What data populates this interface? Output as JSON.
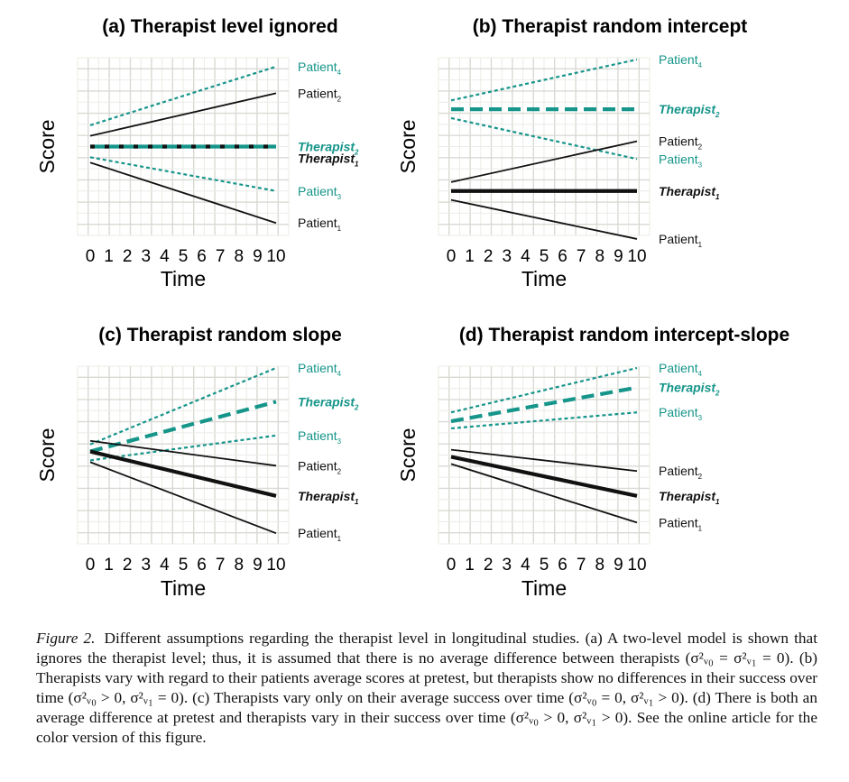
{
  "colors": {
    "teal": "#16958a",
    "black": "#111111",
    "grid_major": "#d9d9d4",
    "grid_minor": "#ebebe6"
  },
  "axes": {
    "xlabel": "Time",
    "ylabel": "Score",
    "xticks": [
      "0",
      "1",
      "2",
      "3",
      "4",
      "5",
      "6",
      "7",
      "8",
      "9",
      "10"
    ]
  },
  "chart_data": [
    {
      "type": "line",
      "title": "(a) Therapist level ignored",
      "xlabel": "Time",
      "ylabel": "Score",
      "xlim": [
        0,
        10
      ],
      "ylim": [
        0,
        10
      ],
      "grid": true,
      "series": [
        {
          "name": "Patient4",
          "base": "Patient",
          "index": "4",
          "color": "teal",
          "style": "dotted",
          "x": [
            0,
            10
          ],
          "y": [
            6.2,
            9.5
          ]
        },
        {
          "name": "Patient2",
          "base": "Patient",
          "index": "2",
          "color": "black",
          "style": "solid",
          "x": [
            0,
            10
          ],
          "y": [
            5.6,
            8.0
          ]
        },
        {
          "name": "Therapist2",
          "base": "Therapist",
          "index": "2",
          "color": "teal",
          "style": "thick-solid",
          "x": [
            0,
            10
          ],
          "y": [
            5.0,
            5.0
          ]
        },
        {
          "name": "Therapist1",
          "base": "Therapist",
          "index": "1",
          "color": "black",
          "style": "thick-dashed",
          "x": [
            0,
            10
          ],
          "y": [
            5.0,
            5.0
          ]
        },
        {
          "name": "Patient3",
          "base": "Patient",
          "index": "3",
          "color": "teal",
          "style": "dotted",
          "x": [
            0,
            10
          ],
          "y": [
            4.4,
            2.5
          ]
        },
        {
          "name": "Patient1",
          "base": "Patient",
          "index": "1",
          "color": "black",
          "style": "solid",
          "x": [
            0,
            10
          ],
          "y": [
            4.1,
            0.7
          ]
        }
      ]
    },
    {
      "type": "line",
      "title": "(b) Therapist random intercept",
      "xlabel": "Time",
      "ylabel": "Score",
      "xlim": [
        0,
        10
      ],
      "ylim": [
        0,
        10
      ],
      "grid": true,
      "series": [
        {
          "name": "Patient4",
          "base": "Patient",
          "index": "4",
          "color": "teal",
          "style": "dotted",
          "x": [
            0,
            10
          ],
          "y": [
            7.6,
            9.9
          ]
        },
        {
          "name": "Therapist2",
          "base": "Therapist",
          "index": "2",
          "color": "teal",
          "style": "thick-dashed",
          "x": [
            0,
            10
          ],
          "y": [
            7.1,
            7.1
          ]
        },
        {
          "name": "Patient3",
          "base": "Patient",
          "index": "3",
          "color": "teal",
          "style": "dotted",
          "x": [
            0,
            10
          ],
          "y": [
            6.6,
            4.3
          ]
        },
        {
          "name": "Patient2",
          "base": "Patient",
          "index": "2",
          "color": "black",
          "style": "solid",
          "x": [
            0,
            10
          ],
          "y": [
            3.0,
            5.3
          ]
        },
        {
          "name": "Therapist1",
          "base": "Therapist",
          "index": "1",
          "color": "black",
          "style": "thick-solid",
          "x": [
            0,
            10
          ],
          "y": [
            2.5,
            2.5
          ]
        },
        {
          "name": "Patient1",
          "base": "Patient",
          "index": "1",
          "color": "black",
          "style": "solid",
          "x": [
            0,
            10
          ],
          "y": [
            2.0,
            -0.2
          ]
        }
      ]
    },
    {
      "type": "line",
      "title": "(c) Therapist random slope",
      "xlabel": "Time",
      "ylabel": "Score",
      "xlim": [
        0,
        10
      ],
      "ylim": [
        0,
        10
      ],
      "grid": true,
      "series": [
        {
          "name": "Patient4",
          "base": "Patient",
          "index": "4",
          "color": "teal",
          "style": "dotted",
          "x": [
            0,
            10
          ],
          "y": [
            5.6,
            9.9
          ]
        },
        {
          "name": "Therapist2",
          "base": "Therapist",
          "index": "2",
          "color": "teal",
          "style": "thick-dashed",
          "x": [
            0,
            10
          ],
          "y": [
            5.2,
            8.0
          ]
        },
        {
          "name": "Patient3",
          "base": "Patient",
          "index": "3",
          "color": "teal",
          "style": "dotted",
          "x": [
            0,
            10
          ],
          "y": [
            4.7,
            6.1
          ]
        },
        {
          "name": "Patient2",
          "base": "Patient",
          "index": "2",
          "color": "black",
          "style": "solid",
          "x": [
            0,
            10
          ],
          "y": [
            5.8,
            4.4
          ]
        },
        {
          "name": "Therapist1",
          "base": "Therapist",
          "index": "1",
          "color": "black",
          "style": "thick-solid",
          "x": [
            0,
            10
          ],
          "y": [
            5.2,
            2.7
          ]
        },
        {
          "name": "Patient1",
          "base": "Patient",
          "index": "1",
          "color": "black",
          "style": "solid",
          "x": [
            0,
            10
          ],
          "y": [
            4.6,
            0.6
          ]
        }
      ]
    },
    {
      "type": "line",
      "title": "(d) Therapist random intercept-slope",
      "xlabel": "Time",
      "ylabel": "Score",
      "xlim": [
        0,
        10
      ],
      "ylim": [
        0,
        10
      ],
      "grid": true,
      "series": [
        {
          "name": "Patient4",
          "base": "Patient",
          "index": "4",
          "color": "teal",
          "style": "dotted",
          "x": [
            0,
            10
          ],
          "y": [
            7.4,
            9.9
          ]
        },
        {
          "name": "Therapist2",
          "base": "Therapist",
          "index": "2",
          "color": "teal",
          "style": "thick-dashed",
          "x": [
            0,
            10
          ],
          "y": [
            6.9,
            8.8
          ]
        },
        {
          "name": "Patient3",
          "base": "Patient",
          "index": "3",
          "color": "teal",
          "style": "dotted",
          "x": [
            0,
            10
          ],
          "y": [
            6.5,
            7.4
          ]
        },
        {
          "name": "Patient2",
          "base": "Patient",
          "index": "2",
          "color": "black",
          "style": "solid",
          "x": [
            0,
            10
          ],
          "y": [
            5.3,
            4.1
          ]
        },
        {
          "name": "Therapist1",
          "base": "Therapist",
          "index": "1",
          "color": "black",
          "style": "thick-solid",
          "x": [
            0,
            10
          ],
          "y": [
            4.9,
            2.7
          ]
        },
        {
          "name": "Patient1",
          "base": "Patient",
          "index": "1",
          "color": "black",
          "style": "solid",
          "x": [
            0,
            10
          ],
          "y": [
            4.5,
            1.2
          ]
        }
      ]
    }
  ],
  "caption": {
    "label": "Figure 2.",
    "parts": [
      "Different assumptions regarding the therapist level in longitudinal studies. (a) A two-level model is shown that ignores the therapist level; thus, it is assumed that there is no average difference between therapists (",
      "σ²ᵥ₀ = σ²ᵥ₁ = 0",
      "). (b) Therapists vary with regard to their patients average scores at pretest, but therapists show no differences in their success over time (",
      "σ²ᵥ₀ > 0, σ²ᵥ₁ = 0",
      "). (c) Therapists vary only on their average success over time (",
      "σ²ᵥ₀ = 0, σ²ᵥ₁ > 0",
      "). (d) There is both an average difference at pretest and therapists vary in their success over time (",
      "σ²ᵥ₀ > 0, σ²ᵥ₁ > 0",
      "). See the online article for the color version of this figure."
    ]
  }
}
